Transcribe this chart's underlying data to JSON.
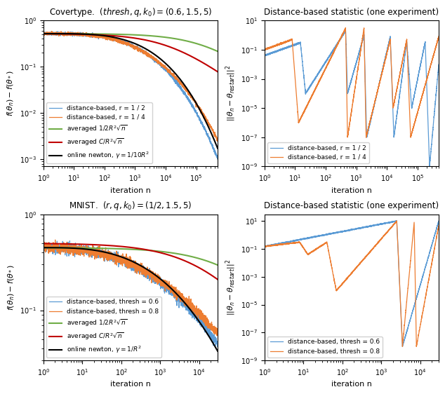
{
  "colors": {
    "blue": "#5b9bd5",
    "orange": "#ed7d31",
    "green": "#70ad47",
    "red": "#c00000",
    "black": "#000000"
  },
  "top_left": {
    "title": "Covertype.  $(thresh, q, k_0) = (0.6, 1.5, 5)$",
    "xlabel": "iteration n",
    "ylabel": "$f(\\theta_n) - f(\\theta_*)$",
    "xlim": [
      1,
      500000
    ],
    "ylim": [
      0.0007,
      1.0
    ],
    "legend_labels": [
      "distance-based, r = 1 / 2",
      "distance-based, r = 1 / 4",
      "averaged $1 / 2R^2\\sqrt{n}$",
      "averaged $C / R^2\\sqrt{n}$",
      "online newton, $\\gamma = 1/10R^2$"
    ]
  },
  "top_right": {
    "title": "Distance-based statistic (one experiment)",
    "xlabel": "iteration n",
    "ylabel": "$||\\theta_n - \\theta_{restart}||^2$",
    "xlim": [
      1,
      500000
    ],
    "ylim": [
      1e-09,
      10
    ],
    "legend_labels": [
      "distance-based, r = 1 / 2",
      "distance-based, r = 1 / 4"
    ]
  },
  "bottom_left": {
    "title": "MNIST.  $(r, q, k_0) = (1/2, 1.5, 5)$",
    "xlabel": "iteration n",
    "ylabel": "$f(\\theta_n) - f(\\theta_*)$",
    "xlim": [
      1,
      30000
    ],
    "ylim": [
      0.03,
      1.0
    ],
    "legend_labels": [
      "distance-based, thresh = 0.6",
      "distance-based, thresh = 0.8",
      "averaged $1 / 2R^2\\sqrt{n}$",
      "averaged $C / R^2\\sqrt{n}$",
      "online newton, $\\gamma = 1/R^2$"
    ]
  },
  "bottom_right": {
    "title": "Distance-based statistic (one experiment)",
    "xlabel": "iteration n",
    "ylabel": "$||\\theta_n - \\theta_{restart}||^2$",
    "xlim": [
      1,
      30000
    ],
    "ylim": [
      1e-09,
      30
    ],
    "legend_labels": [
      "distance-based, thresh = 0.6",
      "distance-based, thresh = 0.8"
    ]
  }
}
